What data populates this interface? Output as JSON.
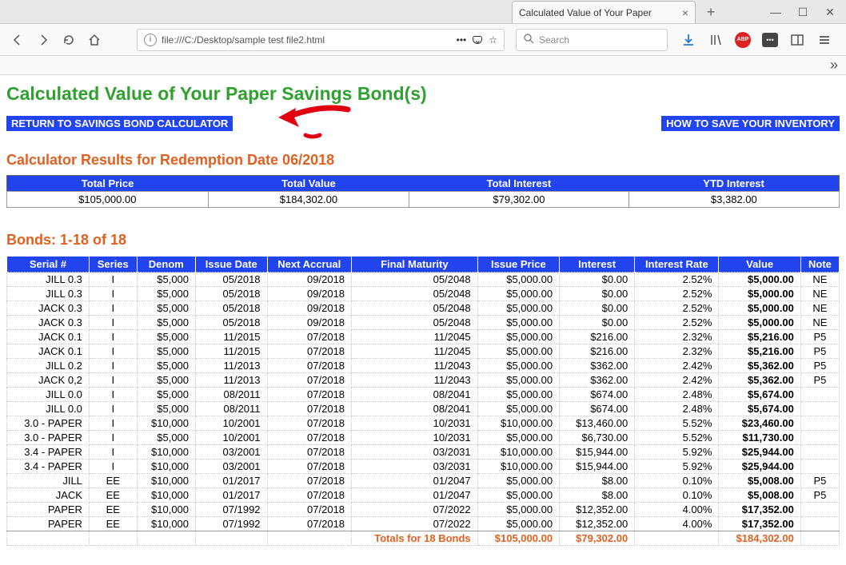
{
  "browser": {
    "tab_title": "Calculated Value of Your Paper",
    "url": "file:///C:/Desktop/sample test file2.html",
    "search_placeholder": "Search"
  },
  "page": {
    "title": "Calculated Value of Your Paper Savings Bond(s)",
    "return_link": "RETURN TO SAVINGS BOND CALCULATOR",
    "howto_link": "HOW TO SAVE YOUR INVENTORY",
    "results_header": "Calculator Results for Redemption Date 06/2018",
    "bonds_header": "Bonds: 1-18 of 18"
  },
  "summary": {
    "headers": [
      "Total Price",
      "Total Value",
      "Total Interest",
      "YTD Interest"
    ],
    "values": [
      "$105,000.00",
      "$184,302.00",
      "$79,302.00",
      "$3,382.00"
    ]
  },
  "bonds": {
    "headers": [
      "Serial #",
      "Series",
      "Denom",
      "Issue Date",
      "Next Accrual",
      "Final Maturity",
      "Issue Price",
      "Interest",
      "Interest Rate",
      "Value",
      "Note"
    ],
    "rows": [
      [
        "JILL 0.3",
        "I",
        "$5,000",
        "05/2018",
        "09/2018",
        "05/2048",
        "$5,000.00",
        "$0.00",
        "2.52%",
        "$5,000.00",
        "NE"
      ],
      [
        "JILL 0.3",
        "I",
        "$5,000",
        "05/2018",
        "09/2018",
        "05/2048",
        "$5,000.00",
        "$0.00",
        "2.52%",
        "$5,000.00",
        "NE"
      ],
      [
        "JACK 0.3",
        "I",
        "$5,000",
        "05/2018",
        "09/2018",
        "05/2048",
        "$5,000.00",
        "$0.00",
        "2.52%",
        "$5,000.00",
        "NE"
      ],
      [
        "JACK 0.3",
        "I",
        "$5,000",
        "05/2018",
        "09/2018",
        "05/2048",
        "$5,000.00",
        "$0.00",
        "2.52%",
        "$5,000.00",
        "NE"
      ],
      [
        "JACK 0.1",
        "I",
        "$5,000",
        "11/2015",
        "07/2018",
        "11/2045",
        "$5,000.00",
        "$216.00",
        "2.32%",
        "$5,216.00",
        "P5"
      ],
      [
        "JACK 0.1",
        "I",
        "$5,000",
        "11/2015",
        "07/2018",
        "11/2045",
        "$5,000.00",
        "$216.00",
        "2.32%",
        "$5,216.00",
        "P5"
      ],
      [
        "JILL 0.2",
        "I",
        "$5,000",
        "11/2013",
        "07/2018",
        "11/2043",
        "$5,000.00",
        "$362.00",
        "2.42%",
        "$5,362.00",
        "P5"
      ],
      [
        "JACK 0,2",
        "I",
        "$5,000",
        "11/2013",
        "07/2018",
        "11/2043",
        "$5,000.00",
        "$362.00",
        "2.42%",
        "$5,362.00",
        "P5"
      ],
      [
        "JILL 0.0",
        "I",
        "$5,000",
        "08/2011",
        "07/2018",
        "08/2041",
        "$5,000.00",
        "$674.00",
        "2.48%",
        "$5,674.00",
        ""
      ],
      [
        "JILL 0.0",
        "I",
        "$5,000",
        "08/2011",
        "07/2018",
        "08/2041",
        "$5,000.00",
        "$674.00",
        "2.48%",
        "$5,674.00",
        ""
      ],
      [
        "3.0 - PAPER",
        "I",
        "$10,000",
        "10/2001",
        "07/2018",
        "10/2031",
        "$10,000.00",
        "$13,460.00",
        "5.52%",
        "$23,460.00",
        ""
      ],
      [
        "3.0 - PAPER",
        "I",
        "$5,000",
        "10/2001",
        "07/2018",
        "10/2031",
        "$5,000.00",
        "$6,730.00",
        "5.52%",
        "$11,730.00",
        ""
      ],
      [
        "3.4 - PAPER",
        "I",
        "$10,000",
        "03/2001",
        "07/2018",
        "03/2031",
        "$10,000.00",
        "$15,944.00",
        "5.92%",
        "$25,944.00",
        ""
      ],
      [
        "3.4 - PAPER",
        "I",
        "$10,000",
        "03/2001",
        "07/2018",
        "03/2031",
        "$10,000.00",
        "$15,944.00",
        "5.92%",
        "$25,944.00",
        ""
      ],
      [
        "JILL",
        "EE",
        "$10,000",
        "01/2017",
        "07/2018",
        "01/2047",
        "$5,000.00",
        "$8.00",
        "0.10%",
        "$5,008.00",
        "P5"
      ],
      [
        "JACK",
        "EE",
        "$10,000",
        "01/2017",
        "07/2018",
        "01/2047",
        "$5,000.00",
        "$8.00",
        "0.10%",
        "$5,008.00",
        "P5"
      ],
      [
        "PAPER",
        "EE",
        "$10,000",
        "07/1992",
        "07/2018",
        "07/2022",
        "$5,000.00",
        "$12,352.00",
        "4.00%",
        "$17,352.00",
        ""
      ],
      [
        "PAPER",
        "EE",
        "$10,000",
        "07/1992",
        "07/2018",
        "07/2022",
        "$5,000.00",
        "$12,352.00",
        "4.00%",
        "$17,352.00",
        ""
      ]
    ],
    "totals_label": "Totals for 18 Bonds",
    "totals": [
      "$105,000.00",
      "$79,302.00",
      "",
      "$184,302.00"
    ]
  },
  "colors": {
    "title_green": "#30a030",
    "header_orange": "#e06020",
    "button_blue": "#2244ee",
    "table_header_blue": "#2244ee",
    "arrow_red": "#e00010"
  }
}
